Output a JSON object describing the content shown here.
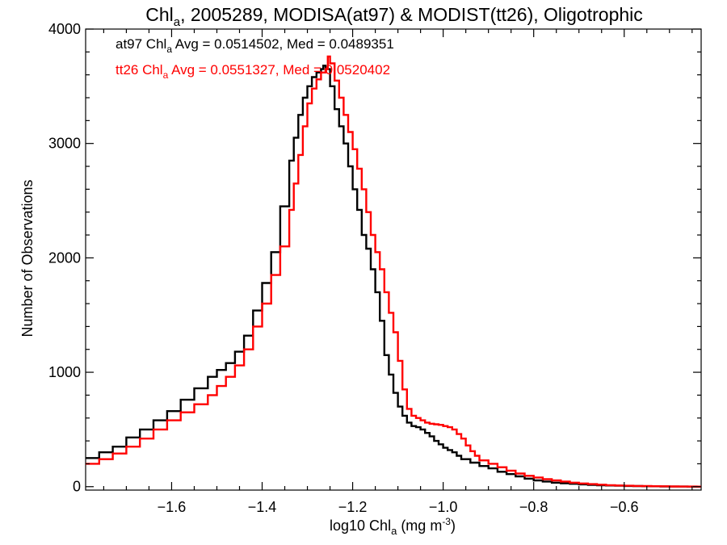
{
  "chart_data": {
    "type": "line",
    "title": {
      "prefix": "Chl",
      "sub": "a",
      "rest": ", 2005289, MODISA(at97) & MODIST(tt26), Oligotrophic"
    },
    "xlabel": {
      "prefix": "log10 Chl",
      "sub": "a",
      "rest": " (mg m",
      "sup": "-3",
      "end": ")"
    },
    "ylabel": "Number of Observations",
    "xlim": [
      -1.79,
      -0.43
    ],
    "ylim": [
      -30,
      4000
    ],
    "x_ticks": [
      -1.6,
      -1.4,
      -1.2,
      -1.0,
      -0.8,
      -0.6
    ],
    "x_tick_labels": [
      "−1.6",
      "−1.4",
      "−1.2",
      "−1.0",
      "−0.8",
      "−0.6"
    ],
    "y_ticks": [
      0,
      1000,
      2000,
      3000,
      4000
    ],
    "y_tick_labels": [
      "0",
      "1000",
      "2000",
      "3000",
      "4000"
    ],
    "grid": false,
    "step": true,
    "annotations": [
      {
        "prefix": "at97 Chl",
        "sub": "a",
        "rest": " Avg = 0.0514502, Med = 0.0489351",
        "color": "#000000"
      },
      {
        "prefix": "tt26 Chl",
        "sub": "a",
        "rest": " Avg = 0.0551327, Med = 0.0520402",
        "color": "#ff0000"
      }
    ],
    "series": [
      {
        "color": "#000000",
        "x": [
          -1.79,
          -1.76,
          -1.73,
          -1.7,
          -1.67,
          -1.64,
          -1.61,
          -1.58,
          -1.55,
          -1.52,
          -1.5,
          -1.48,
          -1.46,
          -1.44,
          -1.42,
          -1.4,
          -1.38,
          -1.36,
          -1.34,
          -1.33,
          -1.32,
          -1.31,
          -1.3,
          -1.29,
          -1.28,
          -1.27,
          -1.265,
          -1.26,
          -1.25,
          -1.24,
          -1.23,
          -1.22,
          -1.21,
          -1.2,
          -1.19,
          -1.18,
          -1.17,
          -1.16,
          -1.15,
          -1.14,
          -1.13,
          -1.12,
          -1.11,
          -1.1,
          -1.09,
          -1.08,
          -1.07,
          -1.06,
          -1.05,
          -1.04,
          -1.03,
          -1.02,
          -1.01,
          -1.0,
          -0.99,
          -0.98,
          -0.97,
          -0.96,
          -0.94,
          -0.92,
          -0.9,
          -0.88,
          -0.86,
          -0.84,
          -0.82,
          -0.8,
          -0.78,
          -0.76,
          -0.74,
          -0.72,
          -0.7,
          -0.68,
          -0.66,
          -0.64,
          -0.62,
          -0.6,
          -0.58,
          -0.56,
          -0.54,
          -0.52,
          -0.5,
          -0.48,
          -0.46,
          -0.44
        ],
        "y": [
          250,
          300,
          350,
          430,
          500,
          580,
          660,
          760,
          860,
          960,
          1020,
          1080,
          1180,
          1320,
          1540,
          1780,
          2050,
          2450,
          2850,
          3050,
          3250,
          3400,
          3500,
          3580,
          3620,
          3650,
          3680,
          3650,
          3500,
          3300,
          3150,
          3000,
          2800,
          2600,
          2420,
          2200,
          2080,
          1900,
          1700,
          1450,
          1150,
          980,
          820,
          700,
          620,
          560,
          530,
          520,
          500,
          470,
          440,
          400,
          370,
          340,
          320,
          300,
          270,
          240,
          210,
          180,
          160,
          130,
          110,
          90,
          70,
          55,
          45,
          35,
          30,
          25,
          20,
          15,
          12,
          10,
          8,
          6,
          5,
          4,
          3,
          2,
          1,
          1,
          0,
          0
        ]
      },
      {
        "color": "#ff0000",
        "x": [
          -1.79,
          -1.76,
          -1.73,
          -1.7,
          -1.67,
          -1.64,
          -1.61,
          -1.58,
          -1.55,
          -1.52,
          -1.5,
          -1.48,
          -1.46,
          -1.44,
          -1.42,
          -1.4,
          -1.38,
          -1.36,
          -1.34,
          -1.33,
          -1.32,
          -1.31,
          -1.3,
          -1.29,
          -1.28,
          -1.27,
          -1.26,
          -1.255,
          -1.25,
          -1.24,
          -1.23,
          -1.22,
          -1.21,
          -1.2,
          -1.19,
          -1.18,
          -1.17,
          -1.16,
          -1.15,
          -1.14,
          -1.13,
          -1.12,
          -1.11,
          -1.1,
          -1.09,
          -1.08,
          -1.07,
          -1.06,
          -1.05,
          -1.04,
          -1.03,
          -1.02,
          -1.01,
          -1.0,
          -0.99,
          -0.98,
          -0.97,
          -0.96,
          -0.95,
          -0.94,
          -0.93,
          -0.92,
          -0.9,
          -0.88,
          -0.86,
          -0.84,
          -0.82,
          -0.8,
          -0.78,
          -0.76,
          -0.74,
          -0.72,
          -0.7,
          -0.68,
          -0.66,
          -0.64,
          -0.62,
          -0.6,
          -0.58,
          -0.56,
          -0.54,
          -0.52,
          -0.5,
          -0.48,
          -0.46,
          -0.44
        ],
        "y": [
          200,
          240,
          290,
          350,
          420,
          500,
          580,
          650,
          720,
          800,
          880,
          960,
          1060,
          1200,
          1400,
          1600,
          1850,
          2100,
          2420,
          2650,
          2900,
          3150,
          3350,
          3480,
          3560,
          3620,
          3650,
          3760,
          3700,
          3550,
          3400,
          3250,
          3100,
          2950,
          2780,
          2600,
          2400,
          2200,
          2050,
          1900,
          1700,
          1520,
          1350,
          1100,
          850,
          680,
          620,
          600,
          580,
          560,
          550,
          545,
          540,
          530,
          520,
          500,
          460,
          420,
          360,
          310,
          270,
          230,
          200,
          170,
          140,
          115,
          95,
          80,
          65,
          55,
          45,
          35,
          28,
          22,
          17,
          13,
          10,
          8,
          6,
          5,
          4,
          3,
          2,
          1,
          1,
          0
        ]
      }
    ]
  }
}
